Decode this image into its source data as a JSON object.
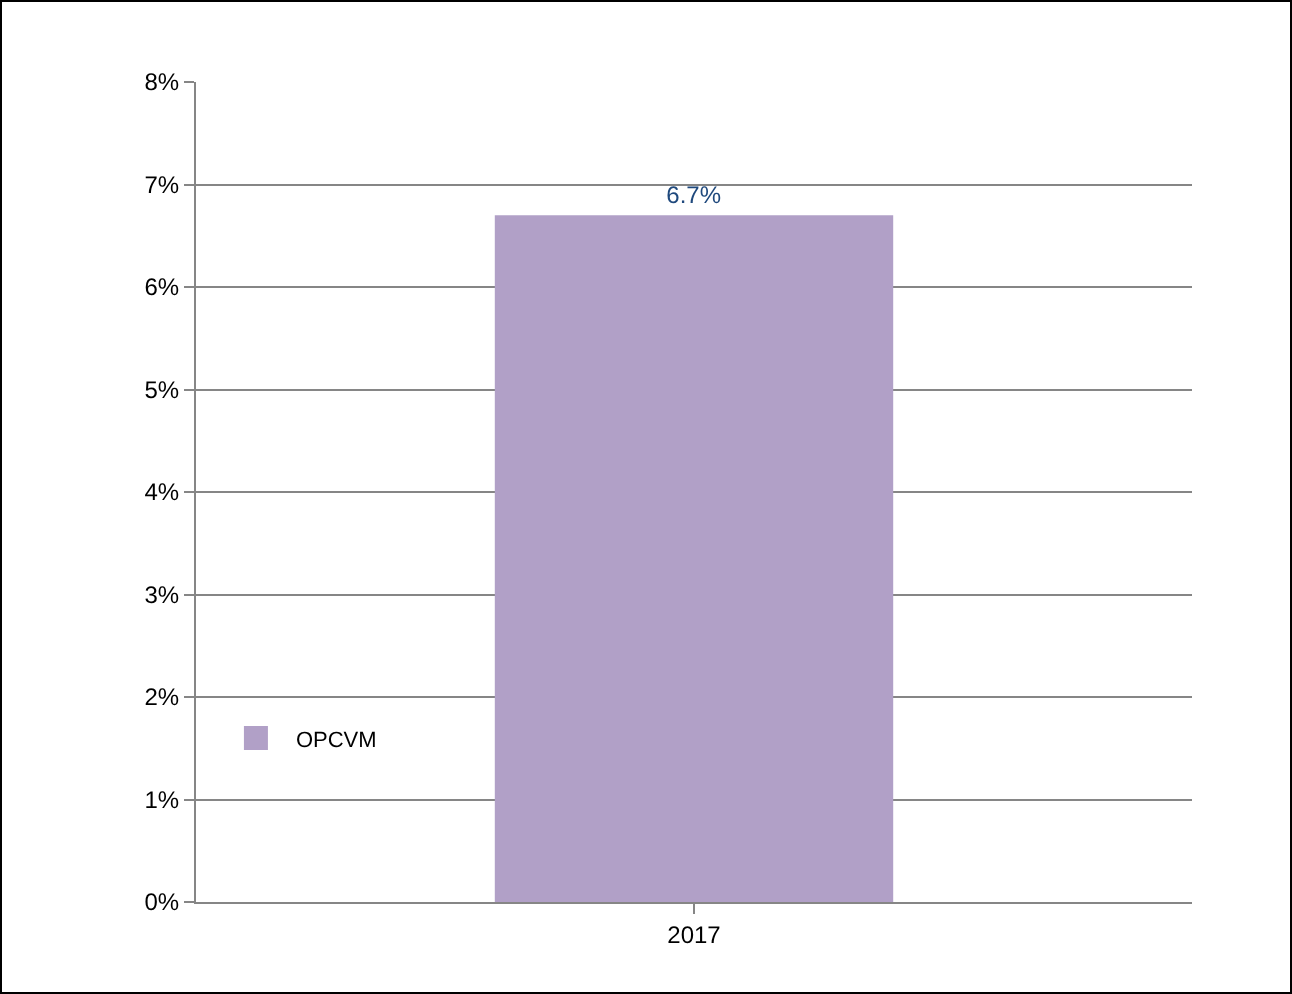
{
  "chart_data": {
    "type": "bar",
    "categories": [
      "2017"
    ],
    "series": [
      {
        "name": "OPCVM",
        "color": "#b1a0c7",
        "values": [
          6.7
        ],
        "value_labels": [
          "6.7%"
        ]
      }
    ],
    "ylim": [
      0,
      8
    ],
    "yticks": [
      {
        "value": 0,
        "label": "0%"
      },
      {
        "value": 1,
        "label": "1%"
      },
      {
        "value": 2,
        "label": "2%"
      },
      {
        "value": 3,
        "label": "3%"
      },
      {
        "value": 4,
        "label": "4%"
      },
      {
        "value": 5,
        "label": "5%"
      },
      {
        "value": 6,
        "label": "6%"
      },
      {
        "value": 7,
        "label": "7%"
      },
      {
        "value": 8,
        "label": "8%"
      }
    ],
    "grid": "y",
    "legend": "bottom left"
  }
}
